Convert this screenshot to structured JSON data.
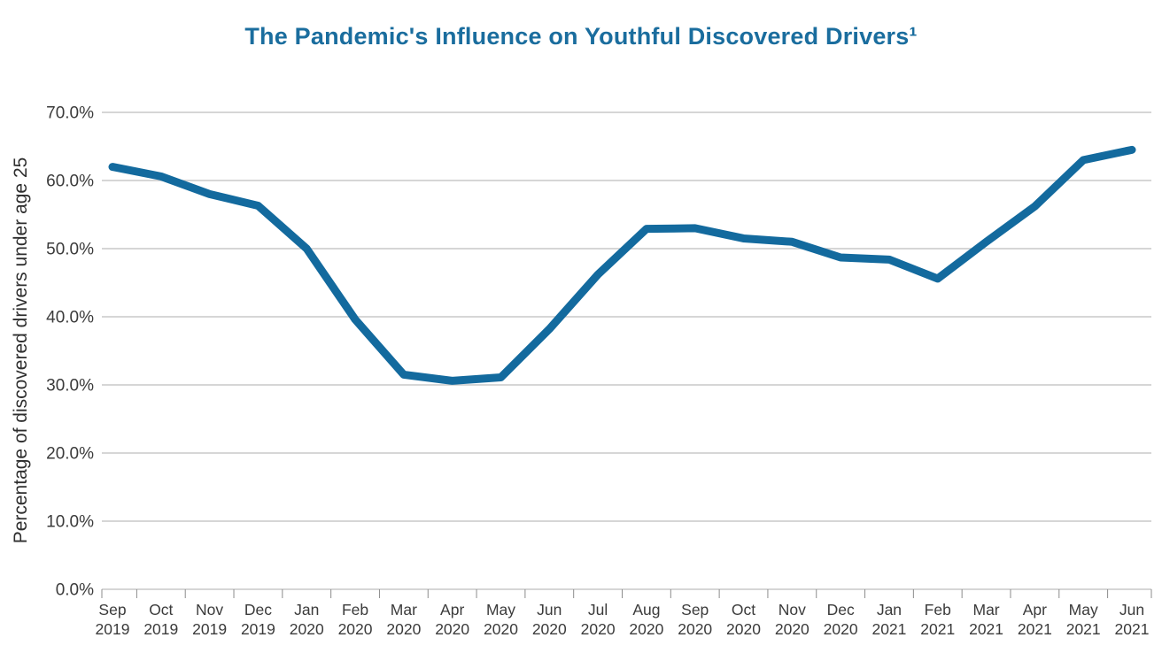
{
  "title": "The Pandemic's Influence on Youthful Discovered Drivers¹",
  "colors": {
    "title": "#1a6d9e",
    "line": "#136a9e",
    "gridline": "#c9c9c9",
    "axis_tick": "#8c8c8c",
    "tick_label": "#3b3b3b",
    "background": "#ffffff"
  },
  "chart_data": {
    "type": "line",
    "title": "The Pandemic's Influence on Youthful Discovered Drivers¹",
    "xlabel": "",
    "ylabel": "Percentage of discovered drivers under age 25",
    "ylim": [
      0,
      70
    ],
    "ytick_step": 10,
    "ytick_format": "one_decimal_percent",
    "grid": true,
    "legend_position": "none",
    "categories": [
      "Sep 2019",
      "Oct 2019",
      "Nov 2019",
      "Dec 2019",
      "Jan 2020",
      "Feb 2020",
      "Mar 2020",
      "Apr 2020",
      "May 2020",
      "Jun 2020",
      "Jul 2020",
      "Aug 2020",
      "Sep 2020",
      "Oct 2020",
      "Nov 2020",
      "Dec 2020",
      "Jan 2021",
      "Feb 2021",
      "Mar 2021",
      "Apr 2021",
      "May 2021",
      "Jun 2021"
    ],
    "series": [
      {
        "name": "Percentage of discovered drivers under age 25",
        "values": [
          62.0,
          60.6,
          58.0,
          56.3,
          50.0,
          39.6,
          31.5,
          30.6,
          31.1,
          38.2,
          46.2,
          52.9,
          53.0,
          51.5,
          51.0,
          48.7,
          48.4,
          45.6,
          51.0,
          56.2,
          63.0,
          64.5
        ]
      }
    ],
    "yticks": [
      "0.0%",
      "10.0%",
      "20.0%",
      "30.0%",
      "40.0%",
      "50.0%",
      "60.0%",
      "70.0%"
    ]
  }
}
